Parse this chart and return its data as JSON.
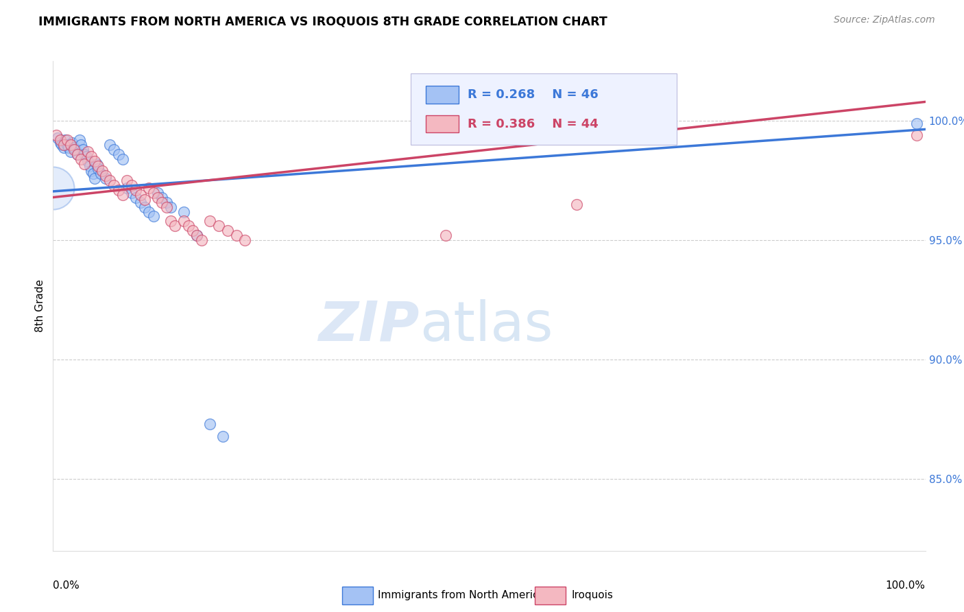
{
  "title": "IMMIGRANTS FROM NORTH AMERICA VS IROQUOIS 8TH GRADE CORRELATION CHART",
  "source": "Source: ZipAtlas.com",
  "ylabel": "8th Grade",
  "ytick_labels": [
    "85.0%",
    "90.0%",
    "95.0%",
    "100.0%"
  ],
  "ytick_values": [
    0.85,
    0.9,
    0.95,
    1.0
  ],
  "xlim": [
    0.0,
    1.0
  ],
  "ylim": [
    0.82,
    1.025
  ],
  "blue_R": 0.268,
  "blue_N": 46,
  "pink_R": 0.386,
  "pink_N": 44,
  "blue_color": "#a4c2f4",
  "pink_color": "#f4b8c1",
  "blue_line_color": "#3c78d8",
  "pink_line_color": "#cc4466",
  "background_color": "#ffffff",
  "grid_color": "#cccccc",
  "blue_points": [
    [
      0.005,
      0.993
    ],
    [
      0.008,
      0.991
    ],
    [
      0.01,
      0.99
    ],
    [
      0.012,
      0.989
    ],
    [
      0.014,
      0.992
    ],
    [
      0.016,
      0.99
    ],
    [
      0.018,
      0.989
    ],
    [
      0.02,
      0.987
    ],
    [
      0.022,
      0.991
    ],
    [
      0.024,
      0.989
    ],
    [
      0.026,
      0.988
    ],
    [
      0.028,
      0.986
    ],
    [
      0.03,
      0.992
    ],
    [
      0.032,
      0.99
    ],
    [
      0.034,
      0.988
    ],
    [
      0.036,
      0.986
    ],
    [
      0.038,
      0.985
    ],
    [
      0.04,
      0.983
    ],
    [
      0.042,
      0.981
    ],
    [
      0.044,
      0.979
    ],
    [
      0.046,
      0.978
    ],
    [
      0.048,
      0.976
    ],
    [
      0.05,
      0.982
    ],
    [
      0.052,
      0.98
    ],
    [
      0.055,
      0.978
    ],
    [
      0.06,
      0.976
    ],
    [
      0.065,
      0.99
    ],
    [
      0.07,
      0.988
    ],
    [
      0.075,
      0.986
    ],
    [
      0.08,
      0.984
    ],
    [
      0.085,
      0.972
    ],
    [
      0.09,
      0.97
    ],
    [
      0.095,
      0.968
    ],
    [
      0.1,
      0.966
    ],
    [
      0.105,
      0.964
    ],
    [
      0.11,
      0.962
    ],
    [
      0.115,
      0.96
    ],
    [
      0.12,
      0.97
    ],
    [
      0.125,
      0.968
    ],
    [
      0.13,
      0.966
    ],
    [
      0.135,
      0.964
    ],
    [
      0.15,
      0.962
    ],
    [
      0.165,
      0.952
    ],
    [
      0.18,
      0.873
    ],
    [
      0.195,
      0.868
    ],
    [
      0.99,
      0.999
    ]
  ],
  "pink_points": [
    [
      0.004,
      0.994
    ],
    [
      0.008,
      0.992
    ],
    [
      0.012,
      0.99
    ],
    [
      0.016,
      0.992
    ],
    [
      0.02,
      0.99
    ],
    [
      0.024,
      0.988
    ],
    [
      0.028,
      0.986
    ],
    [
      0.032,
      0.984
    ],
    [
      0.036,
      0.982
    ],
    [
      0.04,
      0.987
    ],
    [
      0.044,
      0.985
    ],
    [
      0.048,
      0.983
    ],
    [
      0.052,
      0.981
    ],
    [
      0.056,
      0.979
    ],
    [
      0.06,
      0.977
    ],
    [
      0.065,
      0.975
    ],
    [
      0.07,
      0.973
    ],
    [
      0.075,
      0.971
    ],
    [
      0.08,
      0.969
    ],
    [
      0.085,
      0.975
    ],
    [
      0.09,
      0.973
    ],
    [
      0.095,
      0.971
    ],
    [
      0.1,
      0.969
    ],
    [
      0.105,
      0.967
    ],
    [
      0.11,
      0.972
    ],
    [
      0.115,
      0.97
    ],
    [
      0.12,
      0.968
    ],
    [
      0.125,
      0.966
    ],
    [
      0.13,
      0.964
    ],
    [
      0.135,
      0.958
    ],
    [
      0.14,
      0.956
    ],
    [
      0.15,
      0.958
    ],
    [
      0.155,
      0.956
    ],
    [
      0.16,
      0.954
    ],
    [
      0.165,
      0.952
    ],
    [
      0.17,
      0.95
    ],
    [
      0.18,
      0.958
    ],
    [
      0.19,
      0.956
    ],
    [
      0.2,
      0.954
    ],
    [
      0.21,
      0.952
    ],
    [
      0.22,
      0.95
    ],
    [
      0.45,
      0.952
    ],
    [
      0.6,
      0.965
    ],
    [
      0.99,
      0.994
    ]
  ],
  "blue_line_x": [
    0.0,
    1.0
  ],
  "blue_line_y": [
    0.9705,
    0.9965
  ],
  "pink_line_x": [
    0.0,
    1.0
  ],
  "pink_line_y": [
    0.968,
    1.008
  ],
  "large_blue_circle": [
    0.0,
    0.972
  ],
  "large_blue_size": 2000
}
